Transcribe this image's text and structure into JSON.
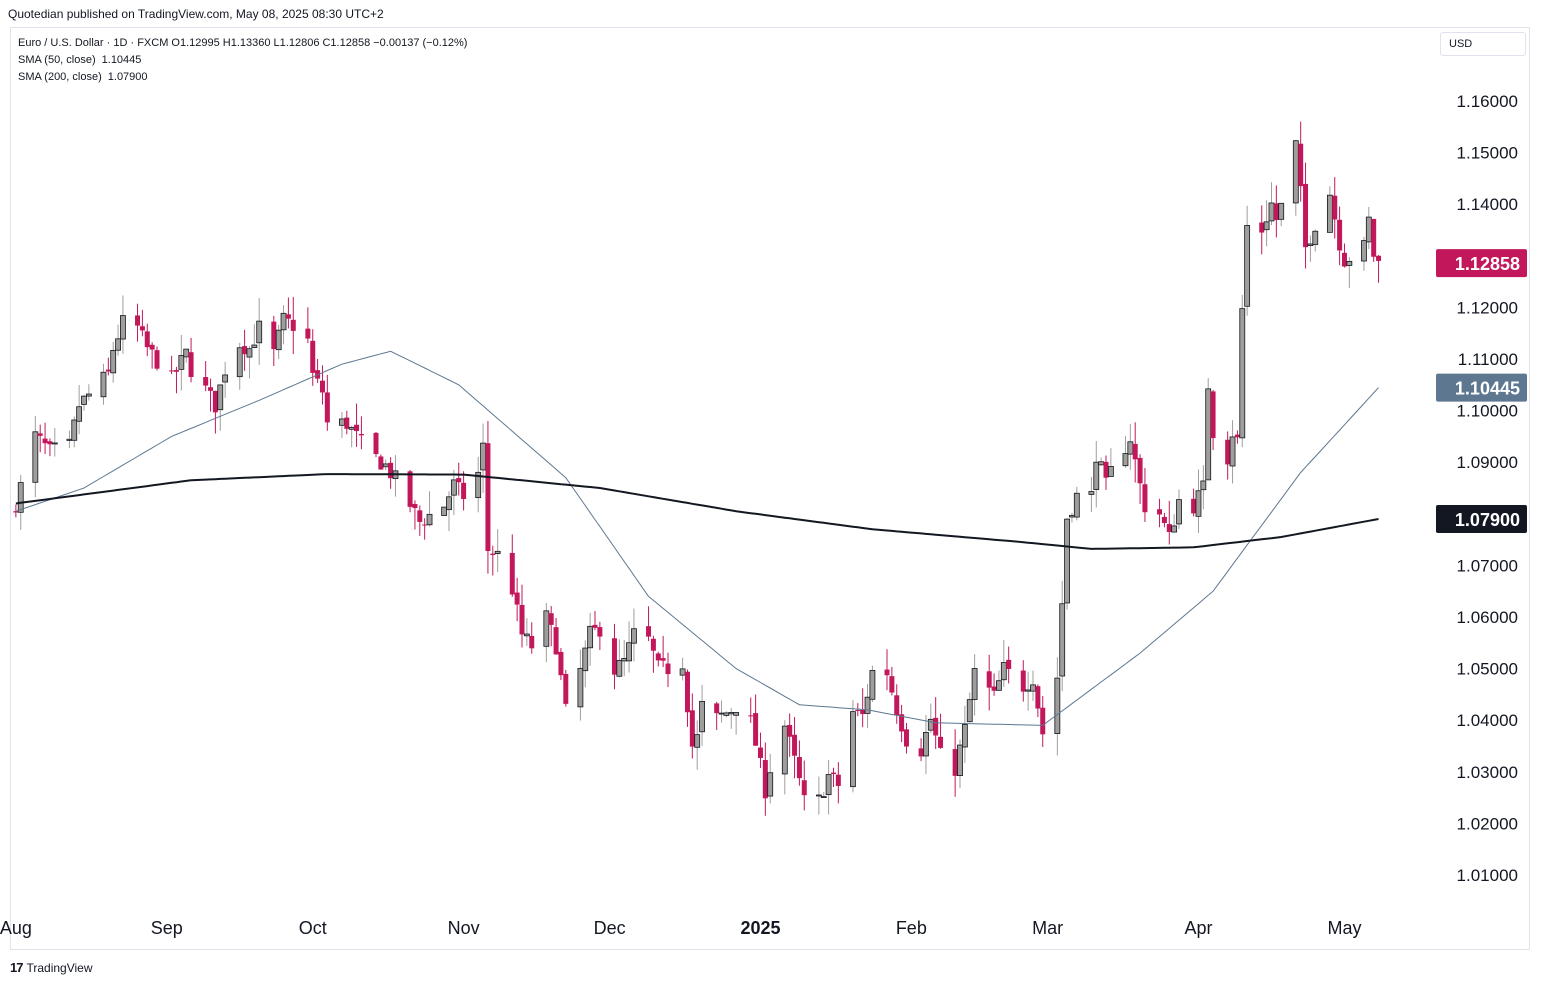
{
  "header": {
    "publisher_text": "Quotedian published on TradingView.com, May 08, 2025 08:30 UTC+2"
  },
  "legend": {
    "main": "Euro / U.S. Dollar · 1D · FXCM  O1.12995  H1.13360  L1.12806  C1.12858  −0.00137 (−0.12%)",
    "sma50_label": "SMA (50, close)",
    "sma50_value": "1.10445",
    "sma200_label": "SMA (200, close)",
    "sma200_value": "1.07900"
  },
  "currency": "USD",
  "footer": {
    "brand": "TradingView",
    "logo_text": "17"
  },
  "colors": {
    "up": "#a09e9b",
    "down": "#c2185b",
    "sma50": "#5d7790",
    "sma200": "#131722",
    "grid": "#f0f3fa"
  },
  "chart_data": {
    "type": "candlestick",
    "symbol": "EURUSD",
    "interval": "1D",
    "ylim": [
      1.002,
      1.168
    ],
    "y_ticks": [
      "1.01000",
      "1.02000",
      "1.03000",
      "1.04000",
      "1.05000",
      "1.06000",
      "1.07000",
      "1.08000",
      "1.09000",
      "1.10000",
      "1.11000",
      "1.12000",
      "1.13000",
      "1.14000",
      "1.15000",
      "1.16000"
    ],
    "x_ticks": [
      "Aug",
      "Sep",
      "Oct",
      "Nov",
      "Dec",
      "2025",
      "Feb",
      "Mar",
      "Apr",
      "May"
    ],
    "last_price_label": "1.12858",
    "sma50_label": "1.10445",
    "sma200_label": "1.07900",
    "close_keypoints": [
      [
        "2024-08-01",
        1.082
      ],
      [
        "2024-08-05",
        1.095
      ],
      [
        "2024-08-08",
        1.092
      ],
      [
        "2024-08-12",
        1.093
      ],
      [
        "2024-08-14",
        1.101
      ],
      [
        "2024-08-16",
        1.103
      ],
      [
        "2024-08-20",
        1.107
      ],
      [
        "2024-08-21",
        1.112
      ],
      [
        "2024-08-23",
        1.117
      ],
      [
        "2024-08-26",
        1.116
      ],
      [
        "2024-08-28",
        1.112
      ],
      [
        "2024-09-02",
        1.106
      ],
      [
        "2024-09-05",
        1.111
      ],
      [
        "2024-09-06",
        1.108
      ],
      [
        "2024-09-09",
        1.104
      ],
      [
        "2024-09-11",
        1.101
      ],
      [
        "2024-09-13",
        1.108
      ],
      [
        "2024-09-16",
        1.113
      ],
      [
        "2024-09-18",
        1.112
      ],
      [
        "2024-09-20",
        1.116
      ],
      [
        "2024-09-23",
        1.111
      ],
      [
        "2024-09-25",
        1.1175
      ],
      [
        "2024-09-27",
        1.1165
      ],
      [
        "2024-09-30",
        1.1135
      ],
      [
        "2024-10-01",
        1.1068
      ],
      [
        "2024-10-03",
        1.1037
      ],
      [
        "2024-10-04",
        1.0975
      ],
      [
        "2024-10-08",
        1.0975
      ],
      [
        "2024-10-11",
        1.0936
      ],
      [
        "2024-10-14",
        1.0908
      ],
      [
        "2024-10-16",
        1.0893
      ],
      [
        "2024-10-18",
        1.0866
      ],
      [
        "2024-10-21",
        1.0817
      ],
      [
        "2024-10-23",
        1.0784
      ],
      [
        "2024-10-25",
        1.0797
      ],
      [
        "2024-10-28",
        1.0816
      ],
      [
        "2024-10-30",
        1.0856
      ],
      [
        "2024-11-01",
        1.0834
      ],
      [
        "2024-11-04",
        1.0878
      ],
      [
        "2024-11-05",
        1.0929
      ],
      [
        "2024-11-06",
        1.073
      ],
      [
        "2024-11-08",
        1.072
      ],
      [
        "2024-11-11",
        1.0654
      ],
      [
        "2024-11-13",
        1.0565
      ],
      [
        "2024-11-15",
        1.0543
      ],
      [
        "2024-11-18",
        1.0598
      ],
      [
        "2024-11-20",
        1.0545
      ],
      [
        "2024-11-22",
        1.0416
      ],
      [
        "2024-11-25",
        1.0496
      ],
      [
        "2024-11-27",
        1.0566
      ],
      [
        "2024-11-29",
        1.0578
      ],
      [
        "2024-12-02",
        1.0497
      ],
      [
        "2024-12-04",
        1.0513
      ],
      [
        "2024-12-06",
        1.0566
      ],
      [
        "2024-12-09",
        1.0554
      ],
      [
        "2024-12-11",
        1.05
      ],
      [
        "2024-12-13",
        1.05
      ],
      [
        "2024-12-16",
        1.0512
      ],
      [
        "2024-12-18",
        1.035
      ],
      [
        "2024-12-19",
        1.0365
      ],
      [
        "2024-12-20",
        1.0427
      ],
      [
        "2024-12-23",
        1.0403
      ],
      [
        "2024-12-26",
        1.042
      ],
      [
        "2024-12-27",
        1.0428
      ],
      [
        "2024-12-30",
        1.0396
      ],
      [
        "2024-12-31",
        1.0354
      ],
      [
        "2025-01-02",
        1.0265
      ],
      [
        "2025-01-03",
        1.0307
      ],
      [
        "2025-01-06",
        1.039
      ],
      [
        "2025-01-08",
        1.032
      ],
      [
        "2025-01-10",
        1.0242
      ],
      [
        "2025-01-13",
        1.0244
      ],
      [
        "2025-01-15",
        1.0292
      ],
      [
        "2025-01-17",
        1.0274
      ],
      [
        "2025-01-20",
        1.0416
      ],
      [
        "2025-01-22",
        1.0408
      ],
      [
        "2025-01-24",
        1.0494
      ],
      [
        "2025-01-27",
        1.0493
      ],
      [
        "2025-01-29",
        1.0422
      ],
      [
        "2025-01-31",
        1.0363
      ],
      [
        "2025-02-03",
        1.0343
      ],
      [
        "2025-02-05",
        1.0402
      ],
      [
        "2025-02-07",
        1.033
      ],
      [
        "2025-02-10",
        1.0306
      ],
      [
        "2025-02-12",
        1.0382
      ],
      [
        "2025-02-14",
        1.0492
      ],
      [
        "2025-02-18",
        1.0445
      ],
      [
        "2025-02-20",
        1.0499
      ],
      [
        "2025-02-24",
        1.0466
      ],
      [
        "2025-02-26",
        1.0483
      ],
      [
        "2025-02-28",
        1.0375
      ],
      [
        "2025-03-03",
        1.0484
      ],
      [
        "2025-03-04",
        1.0627
      ],
      [
        "2025-03-05",
        1.0793
      ],
      [
        "2025-03-07",
        1.0834
      ],
      [
        "2025-03-10",
        1.0834
      ],
      [
        "2025-03-11",
        1.0917
      ],
      [
        "2025-03-13",
        1.0853
      ],
      [
        "2025-03-14",
        1.088
      ],
      [
        "2025-03-18",
        1.0947
      ],
      [
        "2025-03-20",
        1.0855
      ],
      [
        "2025-03-21",
        1.0815
      ],
      [
        "2025-03-24",
        1.08
      ],
      [
        "2025-03-26",
        1.0753
      ],
      [
        "2025-03-28",
        1.0826
      ],
      [
        "2025-03-31",
        1.0816
      ],
      [
        "2025-04-02",
        1.085
      ],
      [
        "2025-04-03",
        1.105
      ],
      [
        "2025-04-04",
        1.096
      ],
      [
        "2025-04-07",
        1.0909
      ],
      [
        "2025-04-08",
        1.0958
      ],
      [
        "2025-04-09",
        1.0942
      ],
      [
        "2025-04-10",
        1.1196
      ],
      [
        "2025-04-11",
        1.1357
      ],
      [
        "2025-04-14",
        1.135
      ],
      [
        "2025-04-16",
        1.14
      ],
      [
        "2025-04-17",
        1.137
      ],
      [
        "2025-04-18",
        1.1395
      ],
      [
        "2025-04-21",
        1.1514
      ],
      [
        "2025-04-22",
        1.142
      ],
      [
        "2025-04-23",
        1.1315
      ],
      [
        "2025-04-25",
        1.1362
      ],
      [
        "2025-04-28",
        1.1422
      ],
      [
        "2025-04-30",
        1.1326
      ],
      [
        "2025-05-01",
        1.1292
      ],
      [
        "2025-05-02",
        1.1297
      ],
      [
        "2025-05-05",
        1.1316
      ],
      [
        "2025-05-06",
        1.1368
      ],
      [
        "2025-05-07",
        1.1302
      ],
      [
        "2025-05-08",
        1.12858
      ]
    ],
    "sma50_keypoints": [
      [
        "2024-08-01",
        1.0805
      ],
      [
        "2024-08-15",
        1.085
      ],
      [
        "2024-09-02",
        1.095
      ],
      [
        "2024-09-20",
        1.102
      ],
      [
        "2024-10-07",
        1.109
      ],
      [
        "2024-10-17",
        1.1115
      ],
      [
        "2024-10-31",
        1.105
      ],
      [
        "2024-11-22",
        1.087
      ],
      [
        "2024-12-09",
        1.064
      ],
      [
        "2024-12-27",
        1.05
      ],
      [
        "2025-01-09",
        1.043
      ],
      [
        "2025-01-23",
        1.042
      ],
      [
        "2025-02-06",
        1.0395
      ],
      [
        "2025-02-28",
        1.039
      ],
      [
        "2025-03-20",
        1.053
      ],
      [
        "2025-04-04",
        1.065
      ],
      [
        "2025-04-22",
        1.088
      ],
      [
        "2025-05-08",
        1.10445
      ]
    ],
    "sma200_keypoints": [
      [
        "2024-08-01",
        1.082
      ],
      [
        "2024-09-06",
        1.0865
      ],
      [
        "2024-10-04",
        1.0877
      ],
      [
        "2024-11-01",
        1.0876
      ],
      [
        "2024-11-29",
        1.085
      ],
      [
        "2024-12-27",
        1.0805
      ],
      [
        "2025-01-24",
        1.077
      ],
      [
        "2025-02-24",
        1.0745
      ],
      [
        "2025-03-10",
        1.0732
      ],
      [
        "2025-03-31",
        1.0735
      ],
      [
        "2025-04-18",
        1.0755
      ],
      [
        "2025-05-08",
        1.079
      ]
    ]
  }
}
